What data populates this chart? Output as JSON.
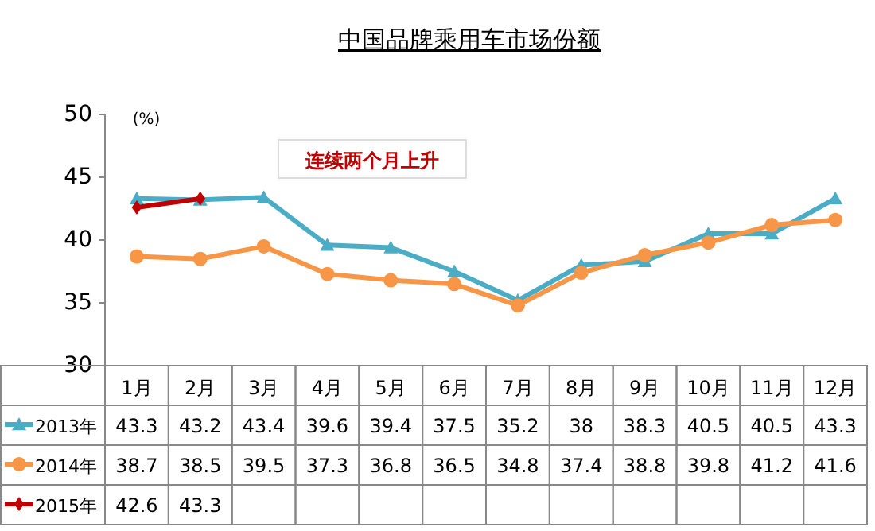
{
  "chart_data": {
    "type": "line",
    "title": "中国品牌乘用车市场份额",
    "ylabel": "(%)",
    "categories": [
      "1月",
      "2月",
      "3月",
      "4月",
      "5月",
      "6月",
      "7月",
      "8月",
      "9月",
      "10月",
      "11月",
      "12月"
    ],
    "series": [
      {
        "name": "2013年",
        "color": "#4bacc6",
        "marker": "triangle",
        "values": [
          43.3,
          43.2,
          43.4,
          39.6,
          39.4,
          37.5,
          35.2,
          38,
          38.3,
          40.5,
          40.5,
          43.3
        ]
      },
      {
        "name": "2014年",
        "color": "#f79646",
        "marker": "circle",
        "values": [
          38.7,
          38.5,
          39.5,
          37.3,
          36.8,
          36.5,
          34.8,
          37.4,
          38.8,
          39.8,
          41.2,
          41.6
        ]
      },
      {
        "name": "2015年",
        "color": "#c00000",
        "marker": "diamond",
        "values": [
          42.6,
          43.3,
          null,
          null,
          null,
          null,
          null,
          null,
          null,
          null,
          null,
          null
        ]
      }
    ],
    "ylim": [
      30,
      50
    ],
    "yticks": [
      30,
      35,
      40,
      45,
      50
    ],
    "annotations": [
      "连续两个月上升"
    ],
    "data_labels": true,
    "legend": "bottom",
    "grid": false
  }
}
